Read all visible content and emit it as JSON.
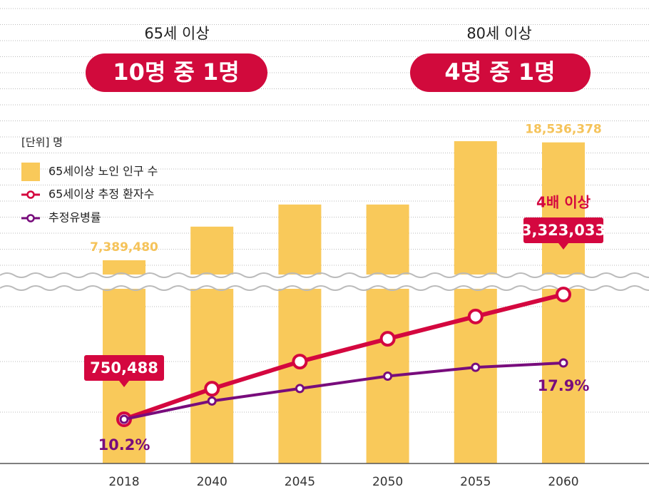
{
  "header": {
    "left": {
      "caption": "65세 이상",
      "headline": "10명 중 1명"
    },
    "right": {
      "caption": "80세 이상",
      "headline": "4명 중 1명"
    }
  },
  "chart_data": {
    "type": "bar-line",
    "unit": "[단위] 명",
    "annotation": "4배 이상",
    "categories": [
      "2018",
      "2040",
      "2045",
      "2050",
      "2055",
      "2060"
    ],
    "series": [
      {
        "name": "65세이상 노인 인구 수",
        "type": "bar",
        "color": "#f9c95a",
        "values": [
          7389480,
          10570000,
          12660000,
          12660000,
          18650000,
          18536378
        ],
        "value_labels": [
          "7,389,480",
          null,
          null,
          null,
          null,
          "18,536,378"
        ]
      },
      {
        "name": "65세이상 추정 환자수",
        "type": "line",
        "color": "#d4073f",
        "values": [
          750488,
          1380000,
          1940000,
          2410000,
          2870000,
          3323033
        ],
        "value_labels": [
          "750,488",
          null,
          null,
          null,
          null,
          "3,323,033"
        ]
      },
      {
        "name": "추정유병률",
        "type": "line",
        "color": "#780c7c",
        "values": [
          10.2,
          12.7,
          14.4,
          16.1,
          17.3,
          17.9
        ],
        "value_labels": [
          "10.2%",
          null,
          null,
          null,
          null,
          "17.9%"
        ]
      }
    ]
  }
}
